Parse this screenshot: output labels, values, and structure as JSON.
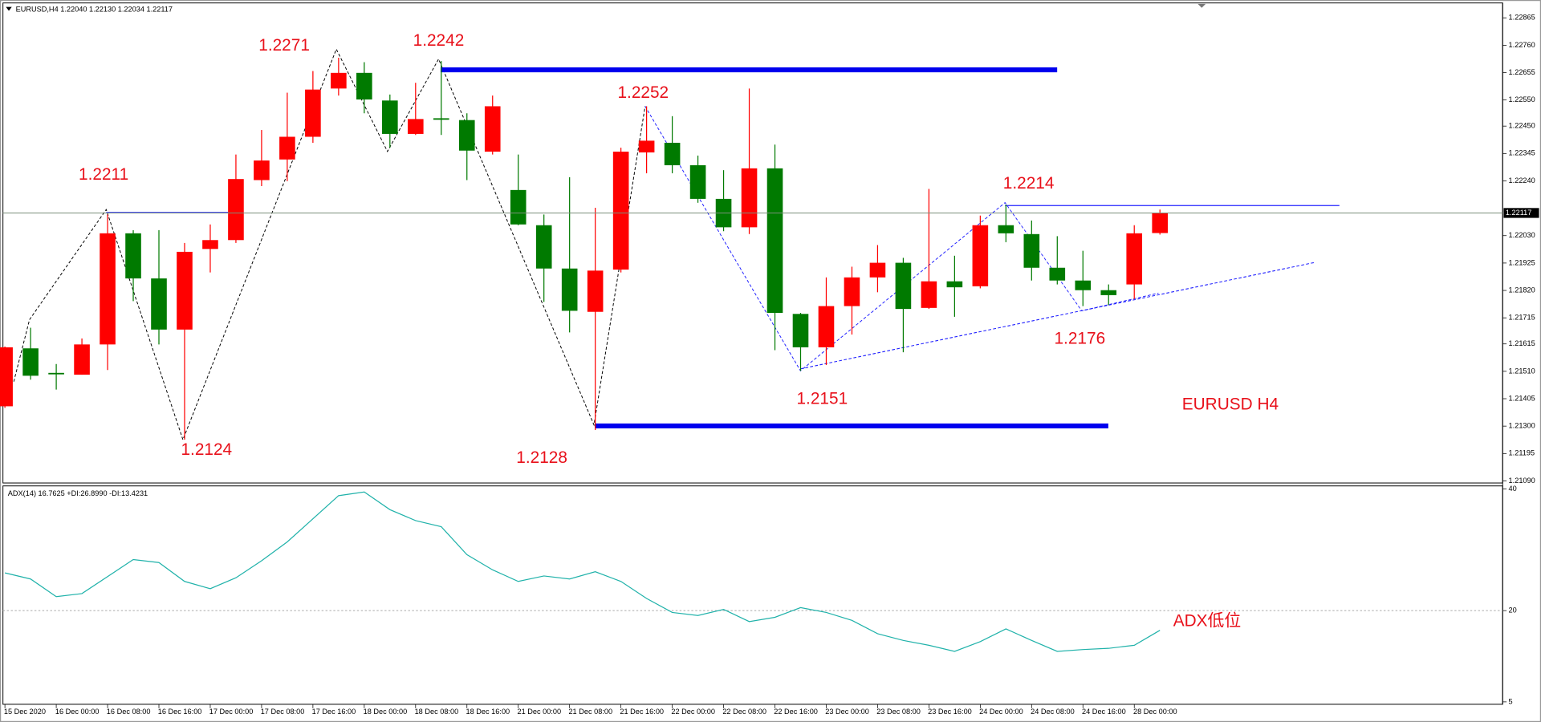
{
  "chart_data": [
    {
      "type": "candlestick",
      "title": "EURUSD,H4  1.22040 1.22130 1.22034 1.22117",
      "categories": [
        "15 Dec 2020",
        null,
        "16 Dec 00:00",
        null,
        "16 Dec 08:00",
        null,
        "16 Dec 16:00",
        null,
        "17 Dec 00:00",
        null,
        "17 Dec 08:00",
        null,
        "17 Dec 16:00",
        null,
        "18 Dec 00:00",
        null,
        "18 Dec 08:00",
        null,
        "18 Dec 16:00",
        null,
        "21 Dec 00:00",
        null,
        "21 Dec 08:00",
        null,
        "21 Dec 16:00",
        null,
        "22 Dec 00:00",
        null,
        "22 Dec 08:00",
        null,
        "22 Dec 16:00",
        null,
        "23 Dec 00:00",
        null,
        "23 Dec 08:00",
        null,
        "23 Dec 16:00",
        null,
        "24 Dec 00:00",
        null,
        "24 Dec 08:00",
        null,
        "24 Dec 16:00",
        null,
        "28 Dec 00:00",
        null
      ],
      "open": [
        1.21376,
        1.21598,
        1.21504,
        1.21497,
        1.21613,
        1.22039,
        1.21866,
        1.2167,
        1.21979,
        1.22013,
        1.22243,
        1.22322,
        1.22409,
        1.22594,
        1.22654,
        1.22548,
        1.2242,
        1.2248,
        1.22473,
        1.22352,
        1.22205,
        1.2207,
        1.21904,
        1.21738,
        1.219,
        1.22349,
        1.22386,
        1.223,
        1.22171,
        1.22062,
        1.22288,
        1.2173,
        1.21602,
        1.2176,
        1.2187,
        1.21926,
        1.21753,
        1.21855,
        1.21836,
        1.2207,
        1.22036,
        1.21907,
        1.21858,
        1.21821,
        1.21843,
        1.2204
      ],
      "high": [
        1.21605,
        1.21677,
        1.21538,
        1.21636,
        1.22111,
        1.22051,
        1.22051,
        1.22002,
        1.22073,
        1.22341,
        1.22435,
        1.22578,
        1.22661,
        1.22712,
        1.22695,
        1.22571,
        1.22616,
        1.22699,
        1.22499,
        1.22567,
        1.22341,
        1.22111,
        1.22254,
        1.22137,
        1.22367,
        1.22526,
        1.22488,
        1.22337,
        1.22281,
        1.22594,
        1.22379,
        1.21734,
        1.2187,
        1.21911,
        1.21994,
        1.21945,
        1.22209,
        1.21953,
        1.22107,
        1.22149,
        1.22088,
        1.22028,
        1.21972,
        1.21843,
        1.2207,
        1.2213
      ],
      "low": [
        1.2137,
        1.21478,
        1.2144,
        1.21497,
        1.21515,
        1.21779,
        1.21613,
        1.21248,
        1.21889,
        1.22002,
        1.2222,
        1.22239,
        1.22386,
        1.22567,
        1.22499,
        1.22367,
        1.22416,
        1.22416,
        1.22243,
        1.22341,
        1.2207,
        1.21776,
        1.21659,
        1.21285,
        1.21889,
        1.22269,
        1.22269,
        1.22156,
        1.22047,
        1.22036,
        1.21591,
        1.21512,
        1.21534,
        1.21651,
        1.21813,
        1.21583,
        1.21749,
        1.21719,
        1.21828,
        1.22005,
        1.21858,
        1.21843,
        1.2176,
        1.21764,
        1.21787,
        1.22034
      ],
      "close": [
        1.21602,
        1.21493,
        1.215,
        1.21613,
        1.22039,
        1.21866,
        1.2167,
        1.21968,
        1.22013,
        1.22247,
        1.22318,
        1.22409,
        1.2259,
        1.22654,
        1.22552,
        1.2242,
        1.22477,
        1.22477,
        1.22356,
        1.22526,
        1.22073,
        1.21904,
        1.21742,
        1.21896,
        1.22352,
        1.22394,
        1.223,
        1.22171,
        1.22062,
        1.22288,
        1.21734,
        1.21602,
        1.2176,
        1.2187,
        1.21926,
        1.21749,
        1.21855,
        1.21832,
        1.2207,
        1.22039,
        1.21907,
        1.21858,
        1.21821,
        1.21802,
        1.22039,
        1.22117
      ],
      "up_color": "#ff0000",
      "down_color": "#007a00",
      "ylim": [
        1.21082,
        1.22922
      ],
      "yticks": [
        1.22865,
        {
          "value": 1.2276,
          "label": "1.22760"
        },
        1.22655,
        {
          "value": 1.2255,
          "label": "1.22550"
        },
        {
          "value": 1.2245,
          "label": "1.22450"
        },
        1.22345,
        {
          "value": 1.2224,
          "label": "1.22240"
        },
        {
          "value": 1.2203,
          "label": "1.22030"
        },
        1.21925,
        {
          "value": 1.2182,
          "label": "1.21820"
        },
        1.21715,
        1.21615,
        {
          "value": 1.2151,
          "label": "1.21510"
        },
        1.21405,
        {
          "value": 1.213,
          "label": "1.21300"
        },
        1.21195,
        {
          "value": 1.2109,
          "label": "1.21090"
        }
      ],
      "current_price": 1.22117,
      "grid": false,
      "annotations": [
        "1.2271",
        "1.2242",
        "1.2211",
        "1.2124",
        "1.2128",
        "1.2252",
        "1.2151",
        "1.2214",
        "1.2176",
        "EURUSD H4"
      ]
    },
    {
      "type": "line",
      "title": "ADX(14) 16.7625 +DI:26.8990 -DI:13.4231",
      "values": [
        26.2,
        25.2,
        22.3,
        22.8,
        25.6,
        28.4,
        27.9,
        24.8,
        23.6,
        25.4,
        28.2,
        31.3,
        35.1,
        38.9,
        39.5,
        36.6,
        34.8,
        33.8,
        29.2,
        26.7,
        24.8,
        25.7,
        25.2,
        26.4,
        24.8,
        22.0,
        19.7,
        19.2,
        20.2,
        18.2,
        18.9,
        20.5,
        19.7,
        18.4,
        16.2,
        15.1,
        14.3,
        13.3,
        14.9,
        17.0,
        15.1,
        13.3,
        13.6,
        13.8,
        14.3,
        16.7625
      ],
      "color": "#20b2aa",
      "ylim": [
        4.6,
        40.5
      ],
      "yticks": [
        40,
        20,
        5
      ],
      "levels": [
        20
      ],
      "grid": false,
      "annotations": [
        "ADX低位"
      ]
    }
  ]
}
